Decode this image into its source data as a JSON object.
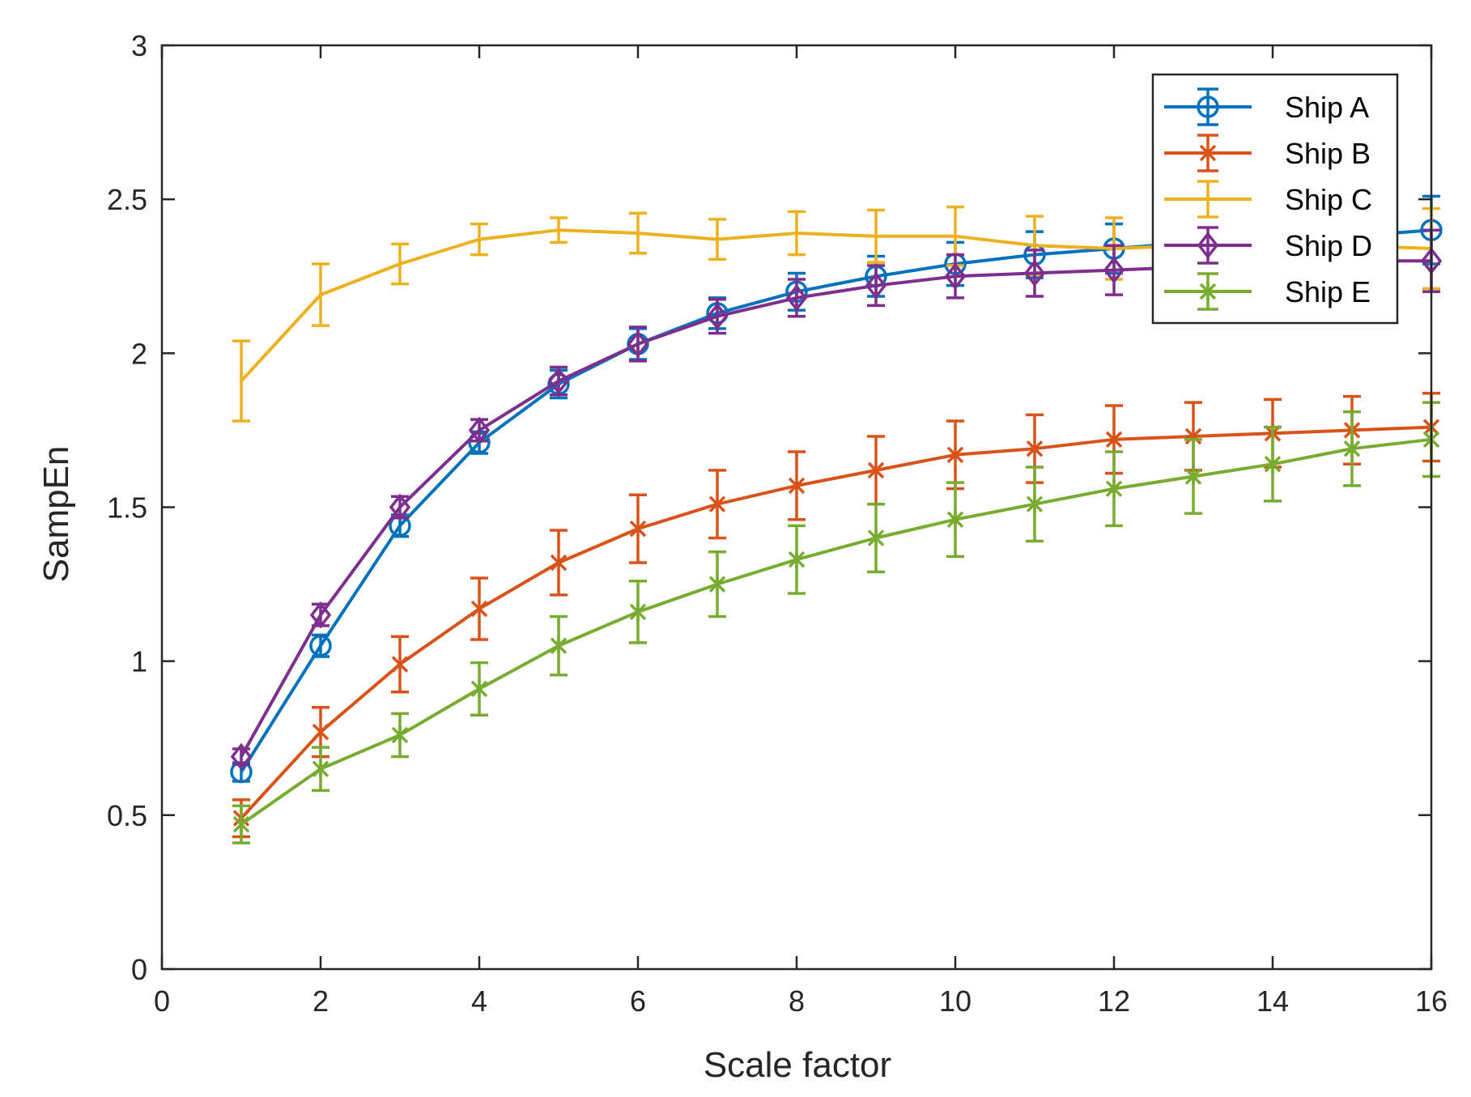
{
  "chart_data": {
    "type": "line",
    "title": "",
    "xlabel": "Scale factor",
    "ylabel": "SampEn",
    "xlim": [
      0,
      16
    ],
    "ylim": [
      0,
      3
    ],
    "xticks": [
      0,
      2,
      4,
      6,
      8,
      10,
      12,
      14,
      16
    ],
    "yticks": [
      0,
      0.5,
      1,
      1.5,
      2,
      2.5,
      3
    ],
    "xtick_labels": [
      "0",
      "2",
      "4",
      "6",
      "8",
      "10",
      "12",
      "14",
      "16"
    ],
    "ytick_labels": [
      "0",
      "0.5",
      "1",
      "1.5",
      "2",
      "2.5",
      "3"
    ],
    "grid": false,
    "legend_position": "top-right",
    "error_bars": true,
    "x": [
      1,
      2,
      3,
      4,
      5,
      6,
      7,
      8,
      9,
      10,
      11,
      12,
      13,
      14,
      15,
      16
    ],
    "series": [
      {
        "name": "Ship A",
        "color": "#0072BD",
        "marker": "circle",
        "values": [
          0.64,
          1.05,
          1.44,
          1.71,
          1.9,
          2.03,
          2.13,
          2.2,
          2.25,
          2.29,
          2.32,
          2.34,
          2.36,
          2.37,
          2.38,
          2.4
        ],
        "errors": [
          0.03,
          0.035,
          0.035,
          0.035,
          0.045,
          0.05,
          0.05,
          0.06,
          0.065,
          0.07,
          0.075,
          0.08,
          0.085,
          0.09,
          0.1,
          0.11
        ]
      },
      {
        "name": "Ship B",
        "color": "#D95319",
        "marker": "x",
        "values": [
          0.49,
          0.77,
          0.99,
          1.17,
          1.32,
          1.43,
          1.51,
          1.57,
          1.62,
          1.67,
          1.69,
          1.72,
          1.73,
          1.74,
          1.75,
          1.76
        ],
        "errors": [
          0.06,
          0.08,
          0.09,
          0.1,
          0.105,
          0.11,
          0.11,
          0.11,
          0.11,
          0.11,
          0.11,
          0.11,
          0.11,
          0.11,
          0.11,
          0.11
        ]
      },
      {
        "name": "Ship C",
        "color": "#EDB120",
        "marker": "none",
        "values": [
          1.91,
          2.19,
          2.29,
          2.37,
          2.4,
          2.39,
          2.37,
          2.39,
          2.38,
          2.38,
          2.35,
          2.34,
          2.35,
          2.36,
          2.35,
          2.34
        ],
        "errors": [
          0.13,
          0.1,
          0.065,
          0.05,
          0.04,
          0.065,
          0.065,
          0.07,
          0.085,
          0.095,
          0.095,
          0.1,
          0.1,
          0.11,
          0.12,
          0.13
        ]
      },
      {
        "name": "Ship D",
        "color": "#7E2F8E",
        "marker": "diamond",
        "values": [
          0.69,
          1.15,
          1.5,
          1.75,
          1.91,
          2.03,
          2.12,
          2.18,
          2.22,
          2.25,
          2.26,
          2.27,
          2.28,
          2.29,
          2.3,
          2.3
        ],
        "errors": [
          0.025,
          0.035,
          0.035,
          0.035,
          0.045,
          0.055,
          0.055,
          0.06,
          0.065,
          0.07,
          0.075,
          0.08,
          0.085,
          0.09,
          0.1,
          0.1
        ]
      },
      {
        "name": "Ship E",
        "color": "#77AC30",
        "marker": "asterisk",
        "values": [
          0.47,
          0.65,
          0.76,
          0.91,
          1.05,
          1.16,
          1.25,
          1.33,
          1.4,
          1.46,
          1.51,
          1.56,
          1.6,
          1.64,
          1.69,
          1.72
        ],
        "errors": [
          0.06,
          0.07,
          0.07,
          0.085,
          0.095,
          0.1,
          0.105,
          0.11,
          0.11,
          0.12,
          0.12,
          0.12,
          0.12,
          0.12,
          0.12,
          0.12
        ]
      }
    ]
  }
}
